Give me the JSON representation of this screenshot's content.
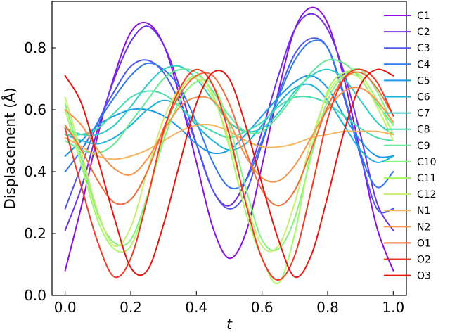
{
  "chart_data": {
    "type": "line",
    "xlabel": "t",
    "ylabel": "Displacement (Å)",
    "xlim": [
      -0.04,
      1.04
    ],
    "ylim": [
      0.0,
      0.95
    ],
    "xticks": [
      0.0,
      0.2,
      0.4,
      0.6,
      0.8,
      1.0
    ],
    "xtick_labels": [
      "0.0",
      "0.2",
      "0.4",
      "0.6",
      "0.8",
      "1.0"
    ],
    "yticks": [
      0.0,
      0.2,
      0.4,
      0.6,
      0.8
    ],
    "ytick_labels": [
      "0.0",
      "0.2",
      "0.4",
      "0.6",
      "0.8"
    ],
    "x": [
      0.0,
      0.05,
      0.1,
      0.15,
      0.2,
      0.25,
      0.3,
      0.35,
      0.4,
      0.45,
      0.5,
      0.55,
      0.6,
      0.65,
      0.7,
      0.75,
      0.8,
      0.85,
      0.9,
      0.95,
      1.0
    ],
    "legend_position": "right",
    "grid": false,
    "series": [
      {
        "name": "C1",
        "color": "#8a0fe0",
        "values": [
          0.08,
          0.29,
          0.52,
          0.71,
          0.85,
          0.88,
          0.81,
          0.64,
          0.43,
          0.22,
          0.12,
          0.2,
          0.42,
          0.66,
          0.86,
          0.93,
          0.88,
          0.7,
          0.46,
          0.22,
          0.08
        ]
      },
      {
        "name": "C2",
        "color": "#7030e6",
        "values": [
          0.21,
          0.35,
          0.54,
          0.7,
          0.82,
          0.87,
          0.81,
          0.67,
          0.49,
          0.34,
          0.29,
          0.37,
          0.53,
          0.71,
          0.86,
          0.91,
          0.86,
          0.72,
          0.52,
          0.3,
          0.21
        ]
      },
      {
        "name": "C3",
        "color": "#4f55ee",
        "values": [
          0.28,
          0.42,
          0.56,
          0.66,
          0.74,
          0.76,
          0.72,
          0.62,
          0.49,
          0.34,
          0.28,
          0.33,
          0.49,
          0.65,
          0.78,
          0.83,
          0.8,
          0.64,
          0.45,
          0.28,
          0.28
        ]
      },
      {
        "name": "C4",
        "color": "#3077f0",
        "values": [
          0.4,
          0.47,
          0.56,
          0.64,
          0.71,
          0.75,
          0.73,
          0.67,
          0.56,
          0.43,
          0.35,
          0.37,
          0.5,
          0.64,
          0.76,
          0.82,
          0.8,
          0.65,
          0.46,
          0.35,
          0.4
        ]
      },
      {
        "name": "C5",
        "color": "#1c98e8",
        "values": [
          0.45,
          0.5,
          0.55,
          0.58,
          0.6,
          0.6,
          0.58,
          0.54,
          0.49,
          0.46,
          0.47,
          0.52,
          0.58,
          0.64,
          0.69,
          0.71,
          0.67,
          0.58,
          0.5,
          0.45,
          0.45
        ]
      },
      {
        "name": "C6",
        "color": "#1ab3dc",
        "values": [
          0.52,
          0.5,
          0.49,
          0.51,
          0.55,
          0.6,
          0.63,
          0.61,
          0.55,
          0.5,
          0.47,
          0.49,
          0.55,
          0.62,
          0.67,
          0.68,
          0.63,
          0.55,
          0.47,
          0.43,
          0.45
        ]
      },
      {
        "name": "C7",
        "color": "#2ecbc7",
        "values": [
          0.54,
          0.52,
          0.52,
          0.55,
          0.61,
          0.68,
          0.73,
          0.74,
          0.7,
          0.63,
          0.56,
          0.53,
          0.54,
          0.59,
          0.66,
          0.71,
          0.73,
          0.7,
          0.63,
          0.56,
          0.52
        ]
      },
      {
        "name": "C8",
        "color": "#48dcb0",
        "values": [
          0.52,
          0.52,
          0.54,
          0.59,
          0.64,
          0.66,
          0.65,
          0.61,
          0.56,
          0.53,
          0.51,
          0.53,
          0.56,
          0.61,
          0.64,
          0.64,
          0.62,
          0.58,
          0.54,
          0.51,
          0.5
        ]
      },
      {
        "name": "C9",
        "color": "#64e997",
        "values": [
          0.5,
          0.47,
          0.46,
          0.49,
          0.56,
          0.63,
          0.7,
          0.73,
          0.72,
          0.66,
          0.58,
          0.53,
          0.53,
          0.58,
          0.65,
          0.72,
          0.76,
          0.75,
          0.7,
          0.62,
          0.55
        ]
      },
      {
        "name": "C10",
        "color": "#86f27f",
        "values": [
          0.62,
          0.44,
          0.26,
          0.17,
          0.18,
          0.32,
          0.5,
          0.63,
          0.69,
          0.68,
          0.55,
          0.35,
          0.18,
          0.15,
          0.25,
          0.45,
          0.63,
          0.71,
          0.73,
          0.66,
          0.55
        ]
      },
      {
        "name": "C11",
        "color": "#a6f76a",
        "values": [
          0.6,
          0.42,
          0.24,
          0.15,
          0.16,
          0.31,
          0.52,
          0.66,
          0.71,
          0.65,
          0.48,
          0.27,
          0.12,
          0.04,
          0.2,
          0.47,
          0.66,
          0.72,
          0.71,
          0.63,
          0.52
        ]
      },
      {
        "name": "C12",
        "color": "#c8ef73",
        "values": [
          0.64,
          0.46,
          0.27,
          0.16,
          0.22,
          0.4,
          0.57,
          0.67,
          0.7,
          0.64,
          0.5,
          0.31,
          0.16,
          0.16,
          0.3,
          0.5,
          0.65,
          0.71,
          0.7,
          0.61,
          0.5
        ]
      },
      {
        "name": "N1",
        "color": "#f5b45e",
        "values": [
          0.51,
          0.48,
          0.45,
          0.44,
          0.45,
          0.47,
          0.5,
          0.53,
          0.55,
          0.55,
          0.53,
          0.5,
          0.48,
          0.48,
          0.49,
          0.51,
          0.52,
          0.53,
          0.53,
          0.53,
          0.52
        ]
      },
      {
        "name": "N2",
        "color": "#f79349",
        "values": [
          0.6,
          0.55,
          0.47,
          0.41,
          0.39,
          0.44,
          0.53,
          0.61,
          0.64,
          0.63,
          0.56,
          0.45,
          0.38,
          0.37,
          0.42,
          0.51,
          0.6,
          0.66,
          0.67,
          0.63,
          0.56
        ]
      },
      {
        "name": "O1",
        "color": "#f26b3a",
        "values": [
          0.55,
          0.47,
          0.37,
          0.3,
          0.31,
          0.4,
          0.54,
          0.65,
          0.71,
          0.71,
          0.62,
          0.47,
          0.34,
          0.29,
          0.34,
          0.47,
          0.61,
          0.7,
          0.72,
          0.67,
          0.58
        ]
      },
      {
        "name": "O2",
        "color": "#ee3a25",
        "values": [
          0.54,
          0.35,
          0.17,
          0.06,
          0.12,
          0.31,
          0.53,
          0.67,
          0.73,
          0.68,
          0.52,
          0.3,
          0.12,
          0.05,
          0.13,
          0.34,
          0.57,
          0.7,
          0.73,
          0.69,
          0.58
        ]
      },
      {
        "name": "O3",
        "color": "#e8140e",
        "values": [
          0.71,
          0.62,
          0.44,
          0.25,
          0.09,
          0.08,
          0.23,
          0.43,
          0.62,
          0.72,
          0.7,
          0.55,
          0.36,
          0.18,
          0.06,
          0.13,
          0.32,
          0.53,
          0.68,
          0.73,
          0.71
        ]
      }
    ]
  }
}
